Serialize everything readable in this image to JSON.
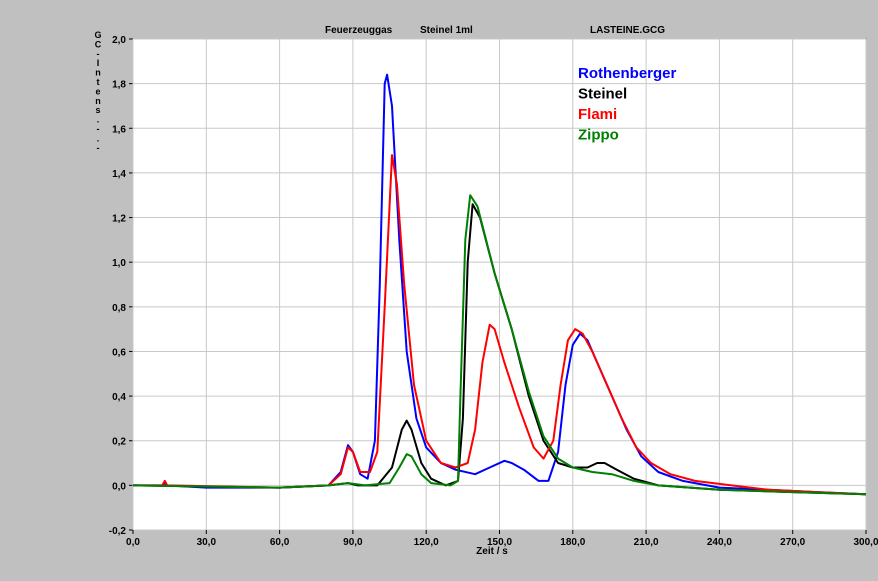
{
  "header": {
    "gas": "Feuerzeuggas",
    "sample": "Steinel 1ml",
    "file": "LASTEINE.GCG"
  },
  "chart_data": {
    "type": "line",
    "title": "",
    "xlabel": "Zeit / s",
    "ylabel": "G C - I n t e n s . - . -",
    "xlim": [
      0,
      300
    ],
    "ylim": [
      -0.2,
      2.0
    ],
    "x_ticks": [
      "0,0",
      "30,0",
      "60,0",
      "90,0",
      "120,0",
      "150,0",
      "180,0",
      "210,0",
      "240,0",
      "270,0",
      "300,0"
    ],
    "y_ticks": [
      "-0,2",
      "0,0",
      "0,2",
      "0,4",
      "0,6",
      "0,8",
      "1,0",
      "1,2",
      "1,4",
      "1,6",
      "1,8",
      "2,0"
    ],
    "grid": true,
    "legend_position": "top-right",
    "series": [
      {
        "name": "Rothenberger",
        "color": "#0000ff",
        "points": [
          [
            0,
            0
          ],
          [
            12,
            0
          ],
          [
            13,
            0.01
          ],
          [
            14,
            0
          ],
          [
            30,
            -0.01
          ],
          [
            60,
            -0.01
          ],
          [
            80,
            0
          ],
          [
            85,
            0.06
          ],
          [
            88,
            0.18
          ],
          [
            90,
            0.15
          ],
          [
            93,
            0.05
          ],
          [
            96,
            0.03
          ],
          [
            99,
            0.2
          ],
          [
            101,
            0.9
          ],
          [
            103,
            1.8
          ],
          [
            104,
            1.84
          ],
          [
            106,
            1.7
          ],
          [
            109,
            1.1
          ],
          [
            112,
            0.6
          ],
          [
            116,
            0.3
          ],
          [
            120,
            0.17
          ],
          [
            126,
            0.1
          ],
          [
            132,
            0.07
          ],
          [
            140,
            0.05
          ],
          [
            146,
            0.08
          ],
          [
            152,
            0.11
          ],
          [
            155,
            0.1
          ],
          [
            160,
            0.07
          ],
          [
            166,
            0.02
          ],
          [
            170,
            0.02
          ],
          [
            174,
            0.15
          ],
          [
            177,
            0.45
          ],
          [
            180,
            0.63
          ],
          [
            183,
            0.68
          ],
          [
            186,
            0.65
          ],
          [
            190,
            0.55
          ],
          [
            196,
            0.4
          ],
          [
            202,
            0.25
          ],
          [
            208,
            0.13
          ],
          [
            215,
            0.06
          ],
          [
            225,
            0.02
          ],
          [
            240,
            -0.01
          ],
          [
            260,
            -0.02
          ],
          [
            280,
            -0.03
          ],
          [
            300,
            -0.04
          ]
        ]
      },
      {
        "name": "Steinel",
        "color": "#000000",
        "points": [
          [
            0,
            0
          ],
          [
            60,
            -0.01
          ],
          [
            80,
            0
          ],
          [
            88,
            0.01
          ],
          [
            92,
            0
          ],
          [
            100,
            0
          ],
          [
            106,
            0.08
          ],
          [
            110,
            0.25
          ],
          [
            112,
            0.29
          ],
          [
            114,
            0.25
          ],
          [
            118,
            0.1
          ],
          [
            122,
            0.03
          ],
          [
            128,
            0
          ],
          [
            133,
            0.02
          ],
          [
            135,
            0.3
          ],
          [
            137,
            1.0
          ],
          [
            139,
            1.26
          ],
          [
            142,
            1.2
          ],
          [
            148,
            0.95
          ],
          [
            155,
            0.7
          ],
          [
            162,
            0.4
          ],
          [
            168,
            0.2
          ],
          [
            174,
            0.1
          ],
          [
            180,
            0.08
          ],
          [
            186,
            0.08
          ],
          [
            190,
            0.1
          ],
          [
            193,
            0.1
          ],
          [
            198,
            0.07
          ],
          [
            205,
            0.03
          ],
          [
            215,
            0
          ],
          [
            240,
            -0.02
          ],
          [
            270,
            -0.03
          ],
          [
            300,
            -0.04
          ]
        ]
      },
      {
        "name": "Flami",
        "color": "#ff0000",
        "points": [
          [
            0,
            0
          ],
          [
            12,
            0
          ],
          [
            13,
            0.02
          ],
          [
            14,
            0
          ],
          [
            60,
            -0.01
          ],
          [
            80,
            0
          ],
          [
            85,
            0.05
          ],
          [
            88,
            0.17
          ],
          [
            90,
            0.15
          ],
          [
            93,
            0.06
          ],
          [
            97,
            0.06
          ],
          [
            100,
            0.15
          ],
          [
            103,
            0.8
          ],
          [
            106,
            1.48
          ],
          [
            108,
            1.35
          ],
          [
            111,
            0.9
          ],
          [
            115,
            0.45
          ],
          [
            120,
            0.2
          ],
          [
            126,
            0.1
          ],
          [
            132,
            0.08
          ],
          [
            137,
            0.1
          ],
          [
            140,
            0.25
          ],
          [
            143,
            0.55
          ],
          [
            146,
            0.72
          ],
          [
            148,
            0.7
          ],
          [
            152,
            0.55
          ],
          [
            158,
            0.35
          ],
          [
            164,
            0.17
          ],
          [
            168,
            0.12
          ],
          [
            172,
            0.2
          ],
          [
            175,
            0.45
          ],
          [
            178,
            0.65
          ],
          [
            181,
            0.7
          ],
          [
            184,
            0.68
          ],
          [
            188,
            0.6
          ],
          [
            194,
            0.45
          ],
          [
            200,
            0.3
          ],
          [
            206,
            0.17
          ],
          [
            212,
            0.1
          ],
          [
            220,
            0.05
          ],
          [
            230,
            0.02
          ],
          [
            245,
            0
          ],
          [
            260,
            -0.02
          ],
          [
            280,
            -0.03
          ],
          [
            300,
            -0.04
          ]
        ]
      },
      {
        "name": "Zippo",
        "color": "#008000",
        "points": [
          [
            0,
            0
          ],
          [
            60,
            -0.01
          ],
          [
            80,
            0
          ],
          [
            88,
            0.01
          ],
          [
            95,
            0
          ],
          [
            105,
            0.01
          ],
          [
            109,
            0.08
          ],
          [
            112,
            0.14
          ],
          [
            114,
            0.13
          ],
          [
            118,
            0.05
          ],
          [
            122,
            0.01
          ],
          [
            130,
            0
          ],
          [
            133,
            0.02
          ],
          [
            134,
            0.4
          ],
          [
            136,
            1.1
          ],
          [
            138,
            1.3
          ],
          [
            141,
            1.25
          ],
          [
            148,
            0.95
          ],
          [
            155,
            0.7
          ],
          [
            162,
            0.42
          ],
          [
            168,
            0.22
          ],
          [
            174,
            0.12
          ],
          [
            180,
            0.08
          ],
          [
            188,
            0.06
          ],
          [
            196,
            0.05
          ],
          [
            205,
            0.02
          ],
          [
            215,
            0
          ],
          [
            240,
            -0.02
          ],
          [
            270,
            -0.03
          ],
          [
            300,
            -0.04
          ]
        ]
      }
    ]
  }
}
